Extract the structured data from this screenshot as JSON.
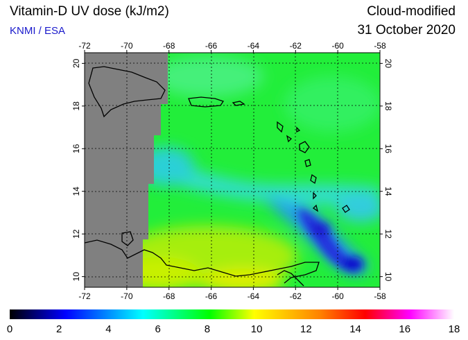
{
  "header": {
    "title": "Vitamin-D UV dose (kJ/m2)",
    "source": "KNMI / ESA",
    "product": "Cloud-modified",
    "date": "31 October 2020"
  },
  "map": {
    "lon_range": [
      -72,
      -58
    ],
    "lat_range": [
      9.5,
      20.5
    ],
    "lon_ticks": [
      -72,
      -70,
      -68,
      -66,
      -64,
      -62,
      -60,
      -58
    ],
    "lat_ticks": [
      10,
      12,
      14,
      16,
      18,
      20
    ],
    "no_data_color": "#808080",
    "coastline_color": "#000000",
    "grid": "dotted"
  },
  "colorbar": {
    "min": 0,
    "max": 18,
    "labels": [
      "0",
      "2",
      "4",
      "6",
      "8",
      "10",
      "12",
      "14",
      "16",
      "18"
    ],
    "stops": [
      "#000000",
      "#0000ff",
      "#00ffff",
      "#00ff00",
      "#ffff00",
      "#ff8000",
      "#ff0000",
      "#ff00ff",
      "#ffffff"
    ]
  }
}
